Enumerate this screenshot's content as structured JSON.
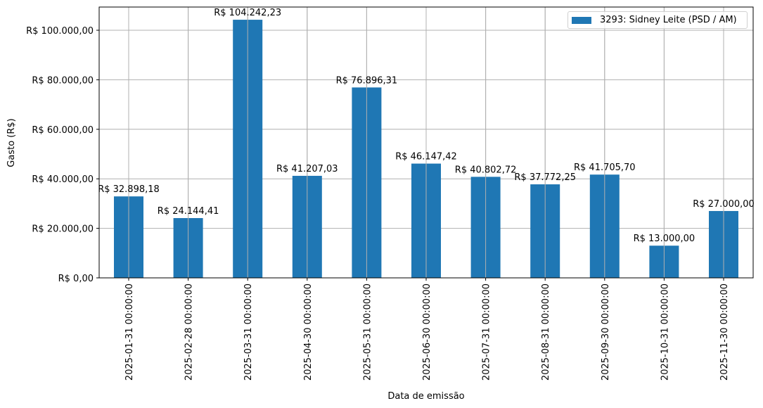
{
  "chart_data": {
    "type": "bar",
    "title": "",
    "xlabel": "Data de emissão",
    "ylabel": "Gasto (R$)",
    "ylim": [
      0,
      110000
    ],
    "grid": true,
    "legend_position": "upper right",
    "bar_color": "#1f77b4",
    "categories": [
      "2025-01-31 00:00:00",
      "2025-02-28 00:00:00",
      "2025-03-31 00:00:00",
      "2025-04-30 00:00:00",
      "2025-05-31 00:00:00",
      "2025-06-30 00:00:00",
      "2025-07-31 00:00:00",
      "2025-08-31 00:00:00",
      "2025-09-30 00:00:00",
      "2025-10-31 00:00:00",
      "2025-11-30 00:00:00"
    ],
    "series": [
      {
        "name": "3293: Sidney Leite (PSD / AM)",
        "values": [
          32898.18,
          24144.41,
          104242.23,
          41207.03,
          76896.31,
          46147.42,
          40802.72,
          37772.25,
          41705.7,
          13000.0,
          27000.0
        ],
        "labels": [
          "R$ 32.898,18",
          "R$ 24.144,41",
          "R$ 104.242,23",
          "R$ 41.207,03",
          "R$ 76.896,31",
          "R$ 46.147,42",
          "R$ 40.802,72",
          "R$ 37.772,25",
          "R$ 41.705,70",
          "R$ 13.000,00",
          "R$ 27.000,00"
        ]
      }
    ],
    "yticks": [
      0,
      20000,
      40000,
      60000,
      80000,
      100000
    ],
    "ytick_labels": [
      "R$ 0,00",
      "R$ 20.000,00",
      "R$ 40.000,00",
      "R$ 60.000,00",
      "R$ 80.000,00",
      "R$ 100.000,00"
    ]
  },
  "legend": {
    "label": "3293: Sidney Leite (PSD / AM)"
  }
}
